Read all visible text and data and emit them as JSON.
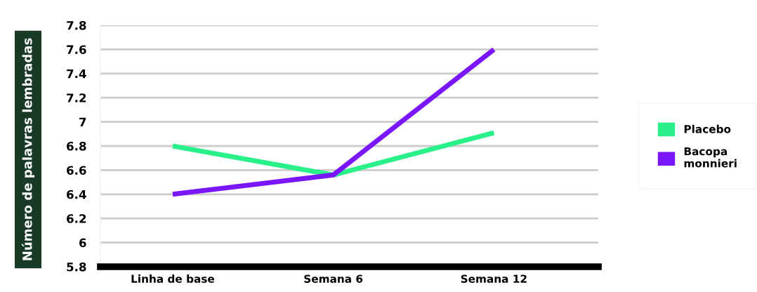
{
  "chart_data": {
    "type": "line",
    "ylabel": "Número de palavras lembradas",
    "categories": [
      "Linha de base",
      "Semana 6",
      "Semana 12"
    ],
    "series": [
      {
        "name": "Placebo",
        "color": "#2af08a",
        "values": [
          6.8,
          6.56,
          6.91
        ]
      },
      {
        "name": "Bacopa monnieri",
        "color": "#7a17fa",
        "values": [
          6.4,
          6.56,
          7.6
        ]
      }
    ],
    "ylim": [
      5.8,
      7.8
    ],
    "yticks": [
      5.8,
      6,
      6.2,
      6.4,
      6.6,
      6.8,
      7,
      7.2,
      7.4,
      7.6,
      7.8
    ],
    "grid": "y",
    "legend": "right",
    "marker": "none",
    "line_style": "solid"
  }
}
